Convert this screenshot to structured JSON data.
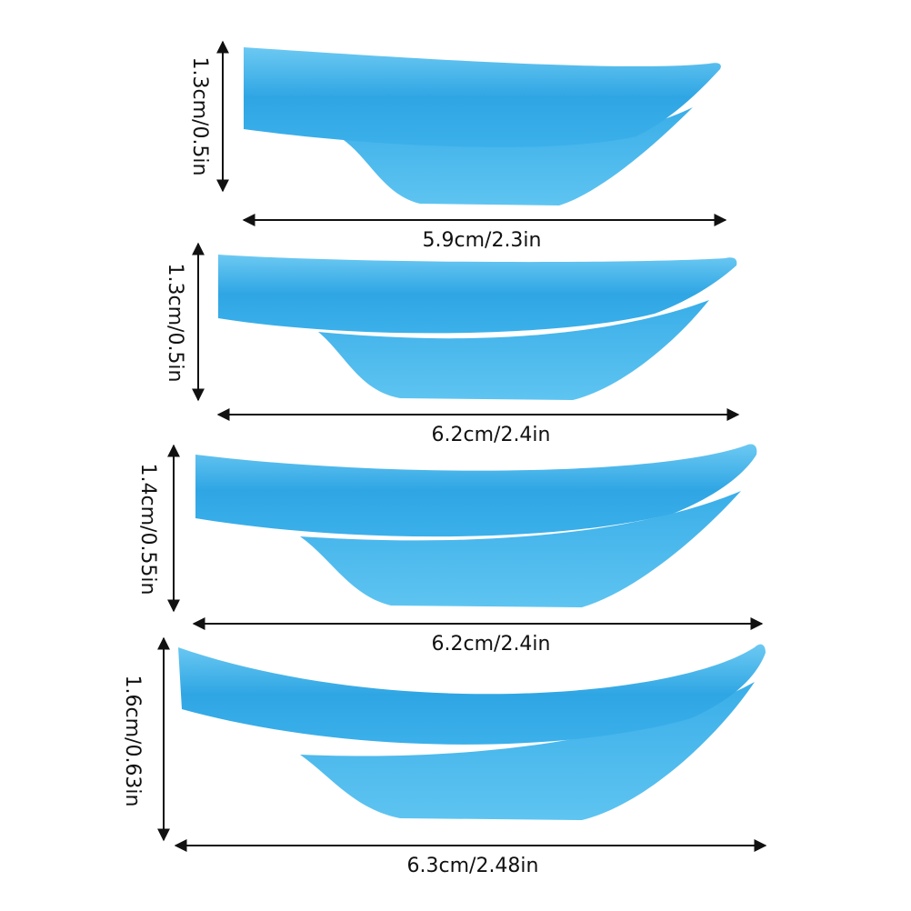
{
  "colors": {
    "body": "#2fa6e4",
    "body_highlight": "#6cc9f2",
    "fin": "#55bdee",
    "arrow": "#111111"
  },
  "pads": [
    {
      "height": "1.3cm/0.5in",
      "width": "5.9cm/2.3in"
    },
    {
      "height": "1.3cm/0.5in",
      "width": "6.2cm/2.4in"
    },
    {
      "height": "1.4cm/0.55in",
      "width": "6.2cm/2.4in"
    },
    {
      "height": "1.6cm/0.63in",
      "width": "6.3cm/2.48in"
    }
  ]
}
